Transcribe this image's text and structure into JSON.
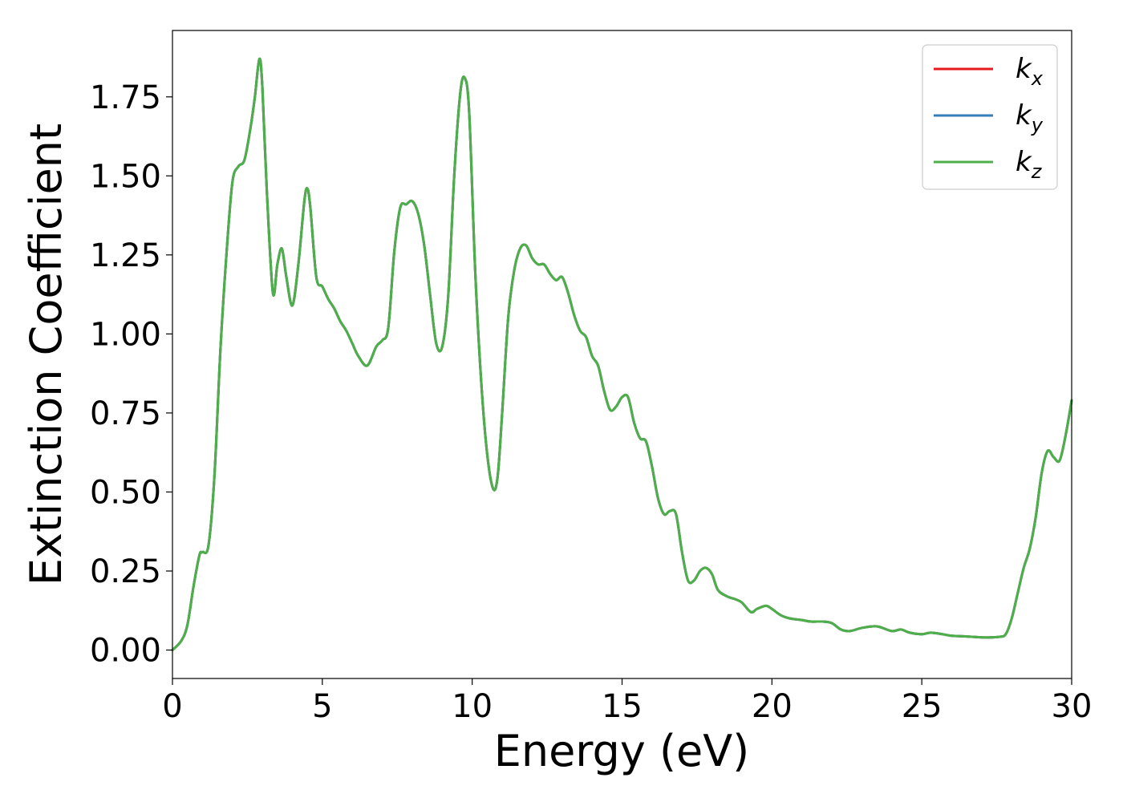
{
  "chart_data": {
    "type": "line",
    "title": "",
    "xlabel": "Energy (eV)",
    "ylabel": "Extinction Coefficient",
    "xlim": [
      0,
      30
    ],
    "ylim": [
      -0.09,
      1.96
    ],
    "xticks": [
      0,
      5,
      10,
      15,
      20,
      25,
      30
    ],
    "xtick_labels": [
      "0",
      "5",
      "10",
      "15",
      "20",
      "25",
      "30"
    ],
    "yticks": [
      0.0,
      0.25,
      0.5,
      0.75,
      1.0,
      1.25,
      1.5,
      1.75
    ],
    "ytick_labels": [
      "0.00",
      "0.25",
      "0.50",
      "0.75",
      "1.00",
      "1.25",
      "1.50",
      "1.75"
    ],
    "grid": false,
    "legend_position": "top-right",
    "series": [
      {
        "name": "k_x",
        "label_base": "k",
        "label_sub": "x",
        "color": "#e41a1c"
      },
      {
        "name": "k_y",
        "label_base": "k",
        "label_sub": "y",
        "color": "#377eb8"
      },
      {
        "name": "k_z",
        "label_base": "k",
        "label_sub": "z",
        "color": "#4daf4a"
      }
    ],
    "x": [
      0.0,
      0.3,
      0.5,
      0.7,
      0.9,
      1.0,
      1.2,
      1.4,
      1.6,
      1.8,
      2.0,
      2.2,
      2.4,
      2.6,
      2.75,
      2.9,
      3.0,
      3.15,
      3.35,
      3.5,
      3.65,
      3.8,
      4.0,
      4.2,
      4.4,
      4.5,
      4.6,
      4.8,
      5.0,
      5.2,
      5.4,
      5.6,
      5.8,
      6.0,
      6.2,
      6.5,
      6.8,
      7.0,
      7.2,
      7.4,
      7.6,
      7.8,
      8.0,
      8.2,
      8.4,
      8.6,
      8.8,
      9.0,
      9.2,
      9.4,
      9.6,
      9.75,
      9.9,
      10.1,
      10.3,
      10.5,
      10.7,
      10.85,
      11.0,
      11.2,
      11.4,
      11.6,
      11.8,
      12.0,
      12.2,
      12.4,
      12.6,
      12.8,
      13.0,
      13.2,
      13.4,
      13.6,
      13.8,
      14.0,
      14.2,
      14.4,
      14.6,
      14.8,
      15.0,
      15.2,
      15.4,
      15.6,
      15.8,
      16.0,
      16.2,
      16.4,
      16.6,
      16.8,
      17.0,
      17.2,
      17.4,
      17.6,
      17.8,
      18.0,
      18.2,
      18.5,
      18.8,
      19.0,
      19.3,
      19.5,
      19.8,
      20.0,
      20.3,
      20.6,
      21.0,
      21.3,
      21.7,
      22.0,
      22.3,
      22.6,
      23.0,
      23.5,
      24.0,
      24.3,
      24.6,
      25.0,
      25.3,
      25.7,
      26.0,
      26.5,
      27.0,
      27.3,
      27.6,
      27.8,
      28.0,
      28.2,
      28.4,
      28.6,
      28.8,
      29.0,
      29.2,
      29.4,
      29.6,
      29.8,
      30.0
    ],
    "y": [
      0.0,
      0.03,
      0.08,
      0.2,
      0.3,
      0.31,
      0.33,
      0.55,
      0.95,
      1.25,
      1.48,
      1.53,
      1.55,
      1.65,
      1.75,
      1.87,
      1.78,
      1.45,
      1.13,
      1.22,
      1.27,
      1.18,
      1.09,
      1.22,
      1.42,
      1.46,
      1.4,
      1.18,
      1.15,
      1.11,
      1.08,
      1.04,
      1.01,
      0.97,
      0.93,
      0.9,
      0.96,
      0.98,
      1.02,
      1.26,
      1.4,
      1.41,
      1.42,
      1.38,
      1.28,
      1.12,
      0.97,
      0.96,
      1.12,
      1.5,
      1.76,
      1.81,
      1.7,
      1.2,
      0.85,
      0.62,
      0.51,
      0.55,
      0.75,
      1.05,
      1.2,
      1.27,
      1.28,
      1.24,
      1.22,
      1.22,
      1.19,
      1.17,
      1.18,
      1.13,
      1.06,
      1.01,
      0.99,
      0.93,
      0.9,
      0.82,
      0.76,
      0.77,
      0.8,
      0.8,
      0.72,
      0.67,
      0.66,
      0.58,
      0.48,
      0.43,
      0.44,
      0.43,
      0.31,
      0.22,
      0.22,
      0.25,
      0.26,
      0.24,
      0.19,
      0.17,
      0.16,
      0.15,
      0.12,
      0.13,
      0.14,
      0.13,
      0.11,
      0.1,
      0.095,
      0.09,
      0.09,
      0.085,
      0.065,
      0.06,
      0.07,
      0.075,
      0.06,
      0.065,
      0.055,
      0.05,
      0.055,
      0.05,
      0.045,
      0.043,
      0.04,
      0.04,
      0.042,
      0.05,
      0.1,
      0.18,
      0.26,
      0.32,
      0.42,
      0.56,
      0.63,
      0.61,
      0.6,
      0.68,
      0.79
    ]
  }
}
